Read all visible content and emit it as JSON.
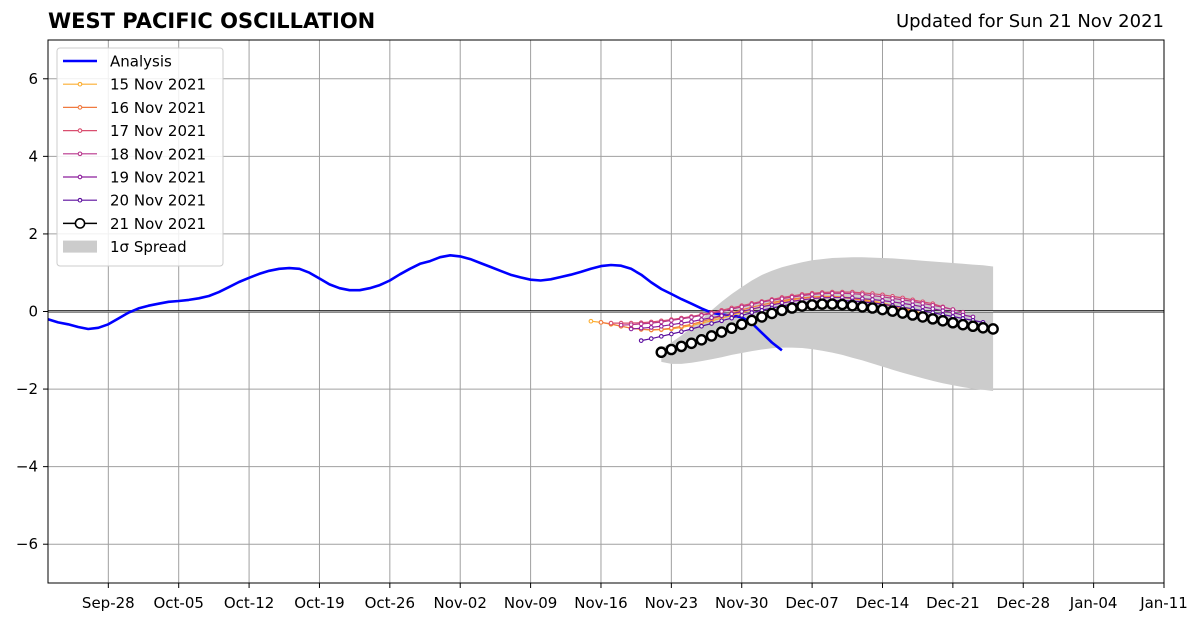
{
  "header": {
    "title": "WEST PACIFIC OSCILLATION",
    "updated": "Updated for Sun 21 Nov 2021"
  },
  "chart_data": {
    "type": "line",
    "xlim": [
      "2021-09-22",
      "2022-01-11"
    ],
    "ylim": [
      -7,
      7
    ],
    "x_ticks": [
      "2021-09-28",
      "2021-10-05",
      "2021-10-12",
      "2021-10-19",
      "2021-10-26",
      "2021-11-02",
      "2021-11-09",
      "2021-11-16",
      "2021-11-23",
      "2021-11-30",
      "2021-12-07",
      "2021-12-14",
      "2021-12-21",
      "2021-12-28",
      "2022-01-04",
      "2022-01-11"
    ],
    "x_tick_labels": [
      "Sep-28",
      "Oct-05",
      "Oct-12",
      "Oct-19",
      "Oct-26",
      "Nov-02",
      "Nov-09",
      "Nov-16",
      "Nov-23",
      "Nov-30",
      "Dec-07",
      "Dec-14",
      "Dec-21",
      "Dec-28",
      "Jan-04",
      "Jan-11"
    ],
    "y_ticks": [
      -6,
      -4,
      -2,
      0,
      2,
      4,
      6
    ],
    "y_tick_labels": [
      "−6",
      "−4",
      "−2",
      "0",
      "2",
      "4",
      "6"
    ],
    "grid": true,
    "legend_position": "top-left",
    "zero_line": 0,
    "analysis": {
      "name": "Analysis",
      "color": "#0000ff",
      "start": "2021-09-22",
      "values": [
        -0.2,
        -0.28,
        -0.33,
        -0.4,
        -0.45,
        -0.42,
        -0.33,
        -0.18,
        -0.03,
        0.08,
        0.15,
        0.2,
        0.25,
        0.27,
        0.3,
        0.34,
        0.4,
        0.5,
        0.63,
        0.76,
        0.87,
        0.97,
        1.05,
        1.1,
        1.12,
        1.1,
        1.0,
        0.85,
        0.7,
        0.6,
        0.55,
        0.55,
        0.6,
        0.68,
        0.8,
        0.96,
        1.1,
        1.23,
        1.3,
        1.4,
        1.45,
        1.42,
        1.35,
        1.25,
        1.15,
        1.05,
        0.95,
        0.88,
        0.82,
        0.8,
        0.83,
        0.89,
        0.95,
        1.02,
        1.1,
        1.17,
        1.2,
        1.18,
        1.1,
        0.95,
        0.75,
        0.58,
        0.45,
        0.32,
        0.2,
        0.08,
        -0.03,
        -0.08,
        -0.1,
        -0.15,
        -0.3,
        -0.55,
        -0.8,
        -1.0
      ]
    },
    "forecasts": [
      {
        "name": "15 Nov 2021",
        "color": "#fcae31",
        "start": "2021-11-15",
        "values": [
          -0.25,
          -0.28,
          -0.33,
          -0.38,
          -0.43,
          -0.46,
          -0.48,
          -0.47,
          -0.45,
          -0.41,
          -0.36,
          -0.3,
          -0.24,
          -0.17,
          -0.1,
          -0.03,
          0.05,
          0.12,
          0.19,
          0.25,
          0.3,
          0.34,
          0.37,
          0.39,
          0.39,
          0.38,
          0.35,
          0.31,
          0.27,
          0.22,
          0.16,
          0.1,
          0.03,
          -0.05,
          -0.15
        ]
      },
      {
        "name": "16 Nov 2021",
        "color": "#f07a40",
        "start": "2021-11-16",
        "values": [
          -0.28,
          -0.32,
          -0.38,
          -0.43,
          -0.46,
          -0.47,
          -0.46,
          -0.43,
          -0.38,
          -0.33,
          -0.26,
          -0.19,
          -0.12,
          -0.04,
          0.04,
          0.11,
          0.17,
          0.23,
          0.28,
          0.32,
          0.35,
          0.37,
          0.38,
          0.38,
          0.36,
          0.33,
          0.29,
          0.24,
          0.19,
          0.13,
          0.07,
          0.0,
          -0.08,
          -0.15,
          -0.2
        ]
      },
      {
        "name": "17 Nov 2021",
        "color": "#d94e6f",
        "start": "2021-11-17",
        "values": [
          -0.3,
          -0.3,
          -0.3,
          -0.29,
          -0.27,
          -0.24,
          -0.21,
          -0.17,
          -0.13,
          -0.08,
          -0.03,
          0.03,
          0.09,
          0.15,
          0.21,
          0.26,
          0.31,
          0.36,
          0.4,
          0.44,
          0.47,
          0.49,
          0.5,
          0.5,
          0.5,
          0.48,
          0.46,
          0.43,
          0.39,
          0.35,
          0.3,
          0.25,
          0.2,
          0.12,
          0.05
        ]
      },
      {
        "name": "18 Nov 2021",
        "color": "#b8358c",
        "start": "2021-11-18",
        "values": [
          -0.35,
          -0.34,
          -0.32,
          -0.3,
          -0.27,
          -0.23,
          -0.19,
          -0.15,
          -0.1,
          -0.05,
          0.0,
          0.06,
          0.12,
          0.18,
          0.24,
          0.29,
          0.33,
          0.37,
          0.41,
          0.44,
          0.46,
          0.47,
          0.47,
          0.46,
          0.44,
          0.41,
          0.38,
          0.34,
          0.3,
          0.26,
          0.21,
          0.16,
          0.11,
          0.05,
          -0.02
        ]
      },
      {
        "name": "19 Nov 2021",
        "color": "#8c1d9c",
        "start": "2021-11-19",
        "values": [
          -0.45,
          -0.43,
          -0.41,
          -0.38,
          -0.34,
          -0.3,
          -0.26,
          -0.21,
          -0.16,
          -0.11,
          -0.06,
          0.0,
          0.06,
          0.12,
          0.17,
          0.22,
          0.26,
          0.3,
          0.33,
          0.35,
          0.36,
          0.36,
          0.35,
          0.33,
          0.31,
          0.28,
          0.25,
          0.21,
          0.17,
          0.12,
          0.07,
          0.02,
          -0.03,
          -0.09,
          -0.14
        ]
      },
      {
        "name": "20 Nov 2021",
        "color": "#5b0e9e",
        "start": "2021-11-20",
        "values": [
          -0.75,
          -0.7,
          -0.64,
          -0.58,
          -0.52,
          -0.45,
          -0.38,
          -0.31,
          -0.24,
          -0.17,
          -0.1,
          -0.03,
          0.03,
          0.09,
          0.14,
          0.19,
          0.22,
          0.25,
          0.27,
          0.28,
          0.28,
          0.27,
          0.25,
          0.22,
          0.19,
          0.15,
          0.11,
          0.07,
          0.02,
          -0.03,
          -0.08,
          -0.13,
          -0.18,
          -0.23,
          -0.28
        ]
      },
      {
        "name": "21 Nov 2021",
        "color": "#000000",
        "start": "2021-11-22",
        "markers": "open-circle",
        "values": [
          -1.05,
          -0.98,
          -0.9,
          -0.82,
          -0.73,
          -0.63,
          -0.53,
          -0.43,
          -0.33,
          -0.23,
          -0.14,
          -0.05,
          0.03,
          0.09,
          0.14,
          0.17,
          0.19,
          0.19,
          0.18,
          0.15,
          0.12,
          0.09,
          0.05,
          0.01,
          -0.04,
          -0.09,
          -0.14,
          -0.19,
          -0.24,
          -0.29,
          -0.34,
          -0.38,
          -0.42,
          -0.45
        ]
      }
    ],
    "spread": {
      "name": "1σ Spread",
      "color": "#cccccc",
      "start": "2021-11-22",
      "upper": [
        -0.95,
        -0.8,
        -0.62,
        -0.42,
        -0.2,
        0.03,
        0.25,
        0.45,
        0.63,
        0.8,
        0.94,
        1.05,
        1.14,
        1.21,
        1.27,
        1.32,
        1.35,
        1.38,
        1.39,
        1.4,
        1.4,
        1.39,
        1.38,
        1.37,
        1.35,
        1.33,
        1.31,
        1.29,
        1.27,
        1.25,
        1.23,
        1.21,
        1.19,
        1.16
      ],
      "lower": [
        -1.3,
        -1.35,
        -1.35,
        -1.32,
        -1.28,
        -1.23,
        -1.18,
        -1.12,
        -1.07,
        -1.02,
        -0.98,
        -0.95,
        -0.93,
        -0.93,
        -0.94,
        -0.97,
        -1.01,
        -1.06,
        -1.12,
        -1.19,
        -1.26,
        -1.34,
        -1.42,
        -1.5,
        -1.58,
        -1.65,
        -1.72,
        -1.79,
        -1.85,
        -1.9,
        -1.95,
        -1.99,
        -2.02,
        -2.05
      ]
    }
  }
}
